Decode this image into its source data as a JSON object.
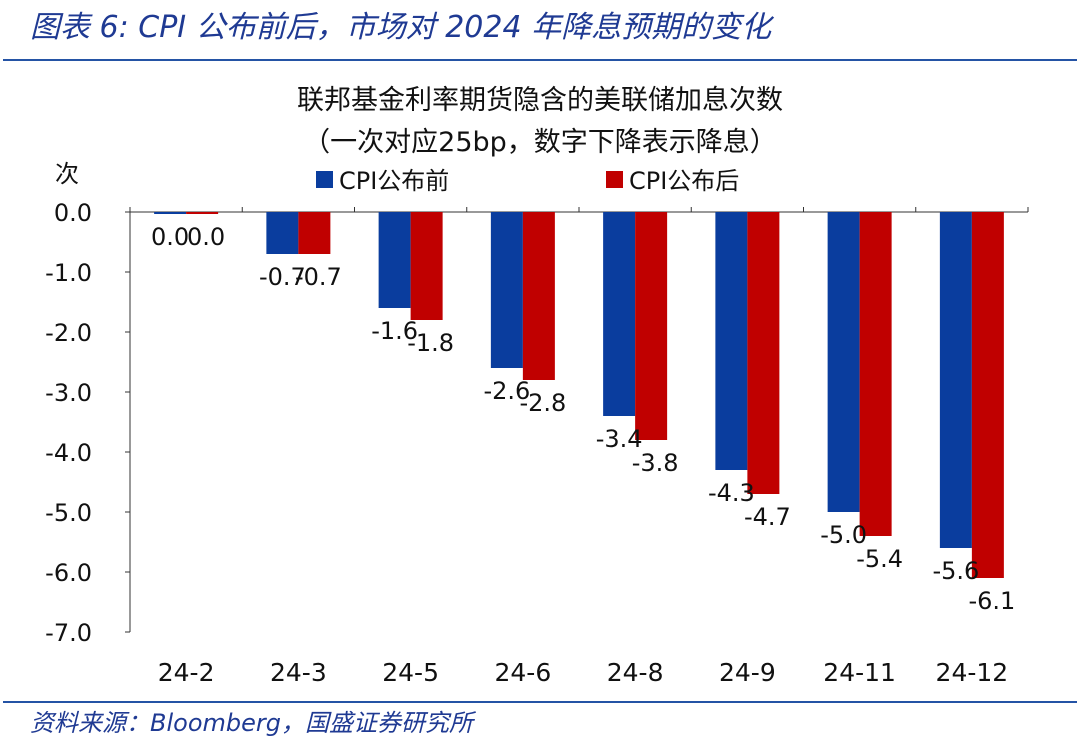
{
  "figure_title": "图表 6:  CPI 公布前后，市场对 2024 年降息预期的变化",
  "source_note": "资料来源：Bloomberg，国盛证券研究所",
  "colors": {
    "before": "#0a3d9e",
    "after": "#c00000",
    "brand": "#1f3a93"
  },
  "chart_data": {
    "type": "bar",
    "title": "联邦基金利率期货隐含的美联储加息次数",
    "subtitle": "（一次对应25bp，数字下降表示降息）",
    "ylabel": "次",
    "xlabel": "",
    "ylim": [
      -7.0,
      0.0
    ],
    "yticks": [
      "0.0",
      "-1.0",
      "-2.0",
      "-3.0",
      "-4.0",
      "-5.0",
      "-6.0",
      "-7.0"
    ],
    "legend_position": "top",
    "categories": [
      "24-2",
      "24-3",
      "24-5",
      "24-6",
      "24-8",
      "24-9",
      "24-11",
      "24-12"
    ],
    "series": [
      {
        "name": "CPI公布前",
        "values": [
          0.0,
          -0.7,
          -1.6,
          -2.6,
          -3.4,
          -4.3,
          -5.0,
          -5.6
        ]
      },
      {
        "name": "CPI公布后",
        "values": [
          0.0,
          -0.7,
          -1.8,
          -2.8,
          -3.8,
          -4.7,
          -5.4,
          -6.1
        ]
      }
    ]
  }
}
